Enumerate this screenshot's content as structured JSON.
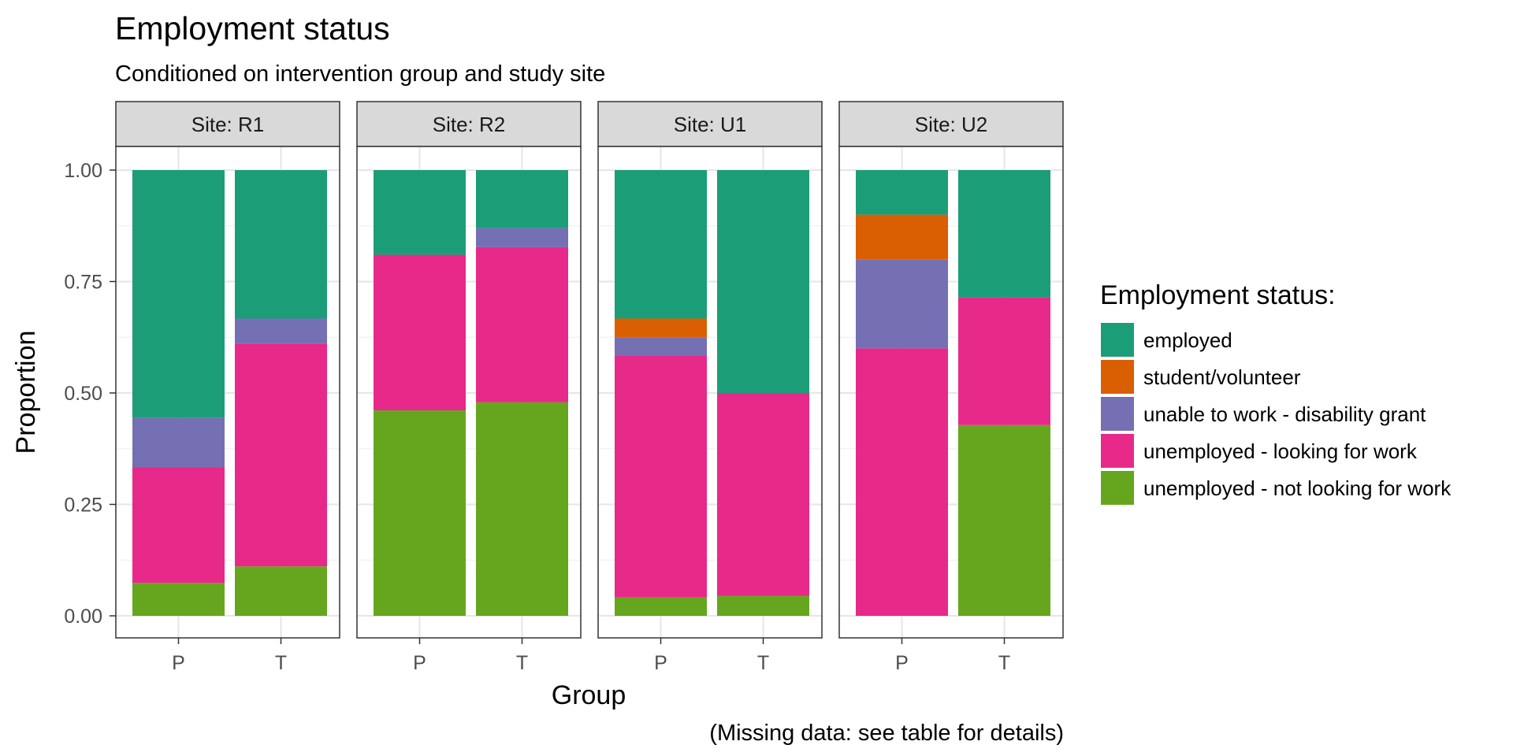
{
  "chart_data": {
    "type": "bar",
    "stacked": true,
    "position": "fill",
    "title": "Employment status",
    "subtitle": "Conditioned on intervention group and study site",
    "caption": "(Missing data: see table for details)",
    "xlabel": "Group",
    "ylabel": "Proportion",
    "ylim": [
      0,
      1
    ],
    "y_ticks": [
      "0.00",
      "0.25",
      "0.50",
      "0.75",
      "1.00"
    ],
    "grid": true,
    "categories": [
      "P",
      "T"
    ],
    "facets": [
      {
        "label": "Site: R1"
      },
      {
        "label": "Site: R2"
      },
      {
        "label": "Site: U1"
      },
      {
        "label": "Site: U2"
      }
    ],
    "legend": {
      "title": "Employment status:",
      "placement": "right"
    },
    "series": [
      {
        "name": "employed",
        "color": "#1B9E77",
        "values": [
          [
            0.556,
            0.333
          ],
          [
            0.19,
            0.13
          ],
          [
            0.333,
            0.5
          ],
          [
            0.1,
            0.286
          ]
        ]
      },
      {
        "name": "student/volunteer",
        "color": "#D95F02",
        "values": [
          [
            0,
            0
          ],
          [
            0,
            0
          ],
          [
            0.042,
            0
          ],
          [
            0.1,
            0
          ]
        ]
      },
      {
        "name": "unable to work - disability grant",
        "color": "#7570B3",
        "values": [
          [
            0.111,
            0.056
          ],
          [
            0,
            0.043
          ],
          [
            0.042,
            0
          ],
          [
            0.2,
            0
          ]
        ]
      },
      {
        "name": "unemployed - looking for work",
        "color": "#E7298A",
        "values": [
          [
            0.259,
            0.5
          ],
          [
            0.349,
            0.348
          ],
          [
            0.542,
            0.455
          ],
          [
            0.6,
            0.286
          ]
        ]
      },
      {
        "name": "unemployed - not looking for work",
        "color": "#66A61E",
        "values": [
          [
            0.074,
            0.111
          ],
          [
            0.461,
            0.479
          ],
          [
            0.041,
            0.045
          ],
          [
            0,
            0.428
          ]
        ]
      }
    ]
  }
}
